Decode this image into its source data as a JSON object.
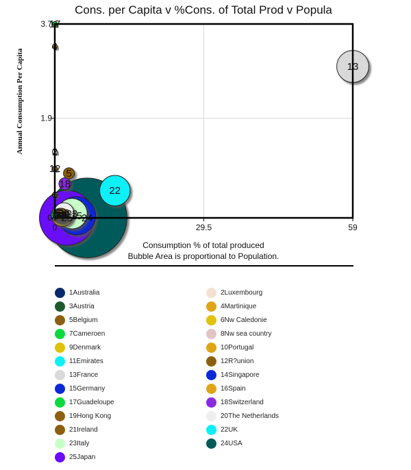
{
  "chart_data": {
    "type": "scatter",
    "subtype": "bubble",
    "title": "Cons. per Capita v %Cons. of Total Prod v Popula",
    "xlabel": "Consumption % of total produced",
    "xlabel_note": "Bubble Area is proportional to Population.",
    "ylabel": "Annual Consumption Per Capita",
    "xlim": [
      0,
      59
    ],
    "ylim": [
      0,
      3.7
    ],
    "x_ticks": [
      "0",
      "29.5",
      "59"
    ],
    "y_ticks": [
      "0",
      "1.9",
      "3.7"
    ],
    "grid": true,
    "legend_position": "bottom",
    "series": [
      {
        "id": 1,
        "name": "Australia",
        "color": "#0a2a6e",
        "x": 1.0,
        "y": 0.05,
        "size": 4
      },
      {
        "id": 2,
        "name": "Luxembourg",
        "color": "#f2e1d3",
        "x": 0.0,
        "y": 1.26,
        "size": 0.5
      },
      {
        "id": 3,
        "name": "Austria",
        "color": "#1f5a2e",
        "x": 0.8,
        "y": 0.05,
        "size": 2.5
      },
      {
        "id": 4,
        "name": "Martinique",
        "color": "#e0a516",
        "x": 0.0,
        "y": 3.27,
        "size": 0.5
      },
      {
        "id": 5,
        "name": "Belgium",
        "color": "#8c6010",
        "x": 2.8,
        "y": 0.85,
        "size": 2.5
      },
      {
        "id": 6,
        "name": "Nw Caledonie",
        "color": "#dfc20a",
        "x": 0.0,
        "y": 0.44,
        "size": 0.5
      },
      {
        "id": 7,
        "name": "Cameroen",
        "color": "#0cd940",
        "x": 0.5,
        "y": 0.05,
        "size": 3
      },
      {
        "id": 8,
        "name": "Nw sea country",
        "color": "#e2c4c4",
        "x": 0.6,
        "y": 0.05,
        "size": 2
      },
      {
        "id": 9,
        "name": "Denmark",
        "color": "#dfc20a",
        "x": 0.7,
        "y": 0.05,
        "size": 2
      },
      {
        "id": 10,
        "name": "Portugal",
        "color": "#e0a516",
        "x": 1.3,
        "y": 0.05,
        "size": 4
      },
      {
        "id": 11,
        "name": "Emirates",
        "color": "#0ef0f8",
        "x": 0.4,
        "y": 0.05,
        "size": 1
      },
      {
        "id": 12,
        "name": "R?union",
        "color": "#8c6010",
        "x": 0.0,
        "y": 0.94,
        "size": 0.5
      },
      {
        "id": 13,
        "name": "France",
        "color": "#d9d9d9",
        "x": 59,
        "y": 2.89,
        "size": 21
      },
      {
        "id": 14,
        "name": "Singapore",
        "color": "#0a28d8",
        "x": 1.1,
        "y": 0.05,
        "size": 2
      },
      {
        "id": 15,
        "name": "Germany",
        "color": "#0a28d8",
        "x": 4.3,
        "y": 0.04,
        "size": 30
      },
      {
        "id": 16,
        "name": "Spain",
        "color": "#e0a516",
        "x": 1.5,
        "y": 0.05,
        "size": 10
      },
      {
        "id": 17,
        "name": "Guadeloupe",
        "color": "#0cd940",
        "x": 0.0,
        "y": 3.7,
        "size": 0.5
      },
      {
        "id": 18,
        "name": "Switzerland",
        "color": "#8a2be2",
        "x": 2.0,
        "y": 0.65,
        "size": 3
      },
      {
        "id": 19,
        "name": "Hong Kong",
        "color": "#8c6010",
        "x": 1.2,
        "y": 0.05,
        "size": 4
      },
      {
        "id": 20,
        "name": "The Netherlands",
        "color": "#eeeeee",
        "x": 1.8,
        "y": 0.1,
        "size": 8
      },
      {
        "id": 21,
        "name": "Ireland",
        "color": "#8c6010",
        "x": 0.9,
        "y": 0.05,
        "size": 2
      },
      {
        "id": 22,
        "name": "UK",
        "color": "#0ef0f8",
        "x": 11.9,
        "y": 0.52,
        "size": 19
      },
      {
        "id": 23,
        "name": "Italy",
        "color": "#c8ffc8",
        "x": 3.4,
        "y": 0.08,
        "size": 19
      },
      {
        "id": 24,
        "name": "USA",
        "color": "#065a5a",
        "x": 6.4,
        "y": 0.0,
        "size": 130
      },
      {
        "id": 25,
        "name": "Japan",
        "color": "#6a0af8",
        "x": 2.4,
        "y": 0.0,
        "size": 62
      }
    ]
  }
}
